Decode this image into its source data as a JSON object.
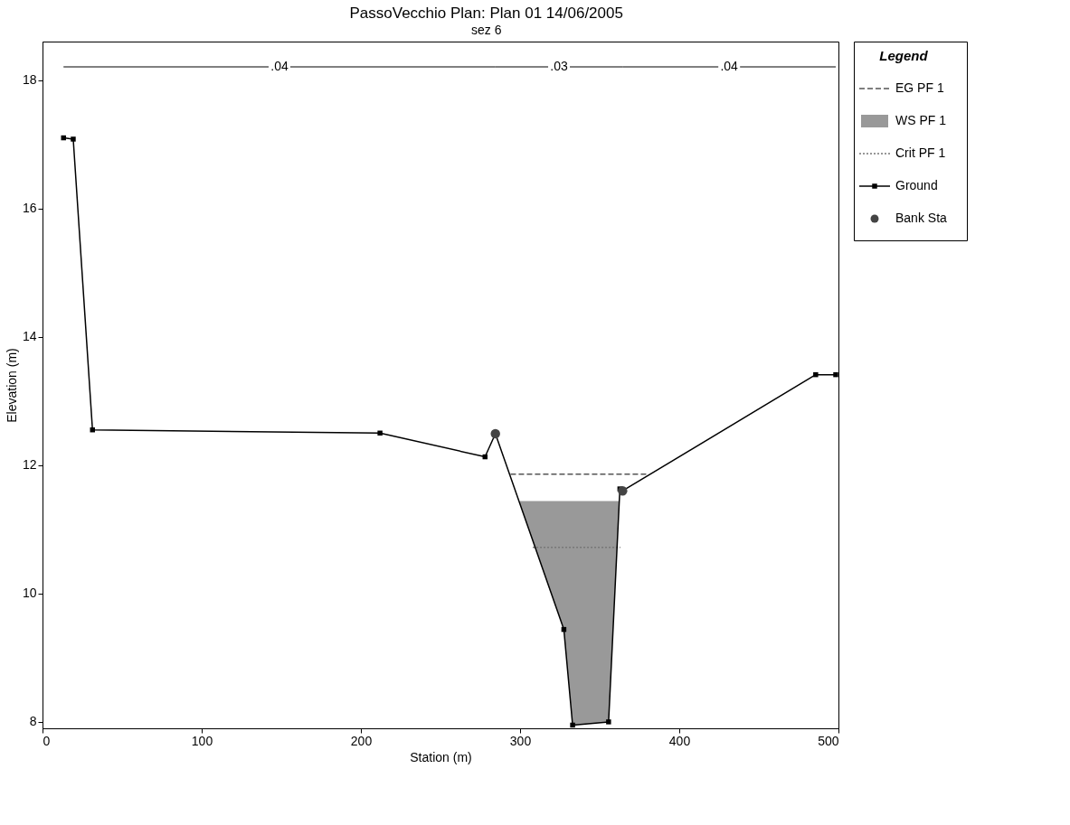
{
  "chart_data": {
    "type": "line",
    "title": "PassoVecchio      Plan: Plan 01      14/06/2005",
    "subtitle": "sez 6",
    "xlabel": "Station (m)",
    "ylabel": "Elevation (m)",
    "legend_title": "Legend",
    "xlim": [
      0,
      500
    ],
    "xticks": [
      0,
      100,
      200,
      300,
      400,
      500
    ],
    "ylim": [
      7.9,
      18.6
    ],
    "yticks": [
      8,
      10,
      12,
      14,
      16,
      18
    ],
    "grid": false,
    "legend": "right",
    "series": [
      {
        "name": "EG PF 1",
        "line_style": "dashed",
        "marker": "none",
        "color": "#555555",
        "x": [
          294,
          380
        ],
        "values": [
          11.86,
          11.86
        ]
      },
      {
        "name": "WS PF 1",
        "type": "area",
        "color": "#999999",
        "x": [
          300,
          327.5,
          333,
          355.6,
          362
        ],
        "values": [
          11.44,
          11.44,
          11.44,
          11.44,
          11.44
        ]
      },
      {
        "name": "Crit PF 1",
        "line_style": "dotted",
        "marker": "none",
        "color": "#777777",
        "x": [
          308,
          363
        ],
        "values": [
          10.72,
          10.72
        ]
      },
      {
        "name": "Ground",
        "line_style": "solid",
        "marker": "square",
        "color": "#000000",
        "x": [
          13.2,
          19.3,
          31.4,
          212,
          278,
          284.5,
          327.5,
          333,
          355.6,
          362.7,
          364.4,
          485.7,
          498.3
        ],
        "values": [
          17.1,
          17.08,
          12.55,
          12.5,
          12.13,
          12.49,
          9.44,
          7.95,
          8.0,
          11.63,
          11.6,
          13.41,
          13.41
        ]
      },
      {
        "name": "Bank Sta",
        "type": "scatter",
        "marker": "circle",
        "color": "#444444",
        "x": [
          284.5,
          364.4
        ],
        "values": [
          12.49,
          11.6
        ]
      }
    ],
    "annotations": [
      ".04",
      ".03",
      ".04"
    ]
  }
}
